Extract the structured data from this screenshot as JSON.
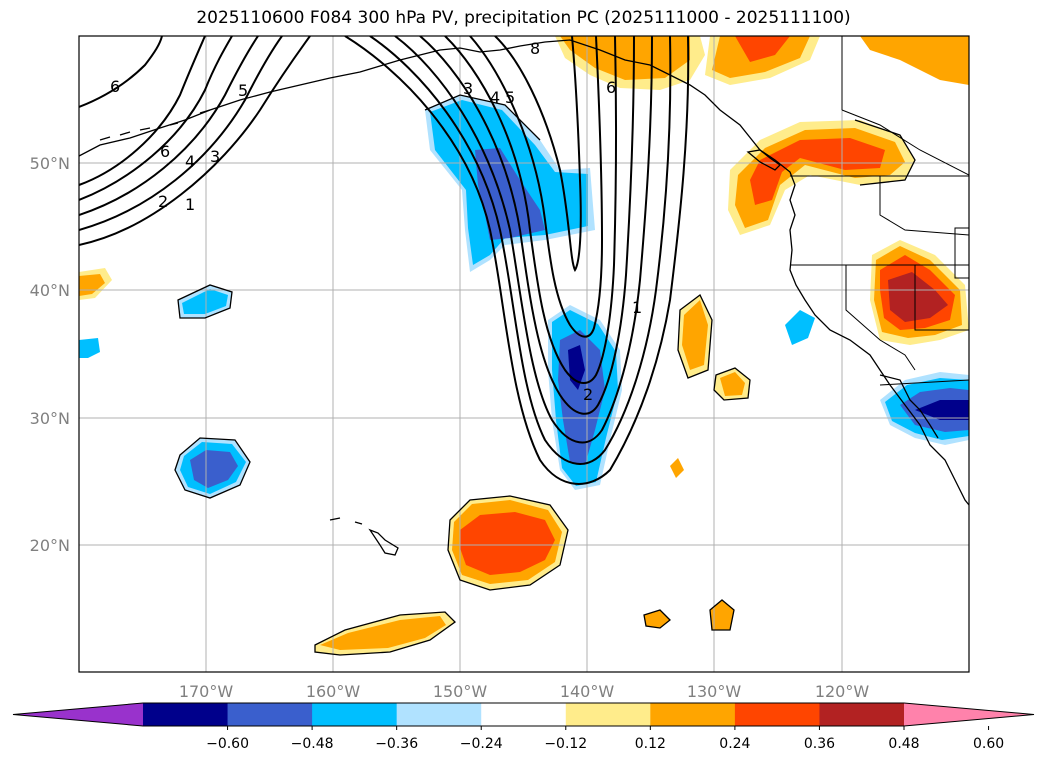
{
  "title": "2025110600 F084 300 hPa PV, precipitation PC (2025111000 - 2025111100)",
  "latitudes": [
    "50°N",
    "40°N",
    "30°N",
    "20°N"
  ],
  "longitudes": [
    "170°W",
    "160°W",
    "150°W",
    "140°W",
    "130°W",
    "120°W"
  ],
  "colorbar": {
    "ticks": [
      "−0.60",
      "−0.48",
      "−0.36",
      "−0.24",
      "−0.12",
      "0.12",
      "0.24",
      "0.36",
      "0.48",
      "0.60"
    ],
    "colors": [
      "#9932cc",
      "#00008b",
      "#3a5fcd",
      "#00bfff",
      "#b0e2ff",
      "#ffffff",
      "#ffec8b",
      "#ffa500",
      "#ff4500",
      "#b22222",
      "#ff82ab"
    ]
  },
  "pv_contour_labels": [
    "6",
    "5",
    "6",
    "4",
    "3",
    "2",
    "1",
    "8",
    "3",
    "4",
    "5",
    "6",
    "1",
    "2"
  ],
  "icons": [
    "coastline",
    "state-borders"
  ]
}
